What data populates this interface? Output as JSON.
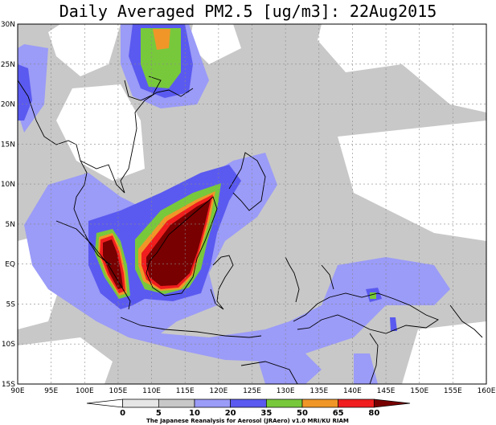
{
  "title": "Daily Averaged PM2.5 [ug/m3]: 22Aug2015",
  "credit": "The Japanese Reanalysis for Aerosol (JRAero) v1.0 MRI/KU RIAM",
  "lat_ticks": [
    "30N",
    "25N",
    "20N",
    "15N",
    "10N",
    "5N",
    "EQ",
    "5S",
    "10S",
    "15S"
  ],
  "lon_ticks": [
    "90E",
    "95E",
    "100E",
    "105E",
    "110E",
    "115E",
    "120E",
    "125E",
    "130E",
    "135E",
    "140E",
    "145E",
    "150E",
    "155E",
    "160E"
  ],
  "colorbar": {
    "levels": [
      "0",
      "5",
      "10",
      "20",
      "35",
      "50",
      "65",
      "80"
    ],
    "colors": [
      "#ffffff",
      "#e6e6e6",
      "#c8c8c8",
      "#9b9bf8",
      "#5a5af0",
      "#78c83c",
      "#f09628",
      "#f01e1e",
      "#780000"
    ]
  },
  "grid_lines": true,
  "extent": {
    "lon_min": 90,
    "lon_max": 160,
    "lat_min": -15,
    "lat_max": 30
  }
}
